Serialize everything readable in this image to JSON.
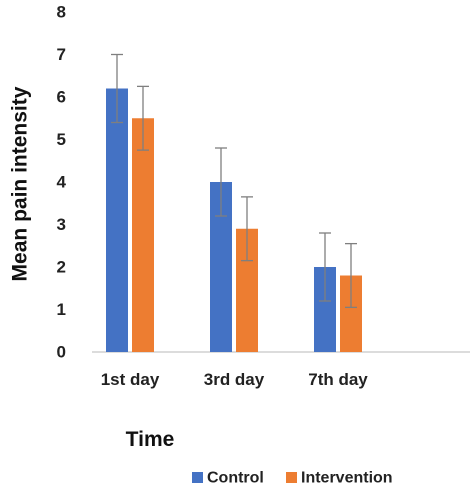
{
  "chart_data": {
    "type": "bar",
    "categories": [
      "1st day",
      "3rd day",
      "7th day"
    ],
    "series": [
      {
        "name": "Control",
        "values": [
          6.2,
          4.0,
          2.0
        ],
        "errors": [
          0.8,
          0.8,
          0.8
        ],
        "color": "#4472C4"
      },
      {
        "name": "Intervention",
        "values": [
          5.5,
          2.9,
          1.8
        ],
        "errors": [
          0.75,
          0.75,
          0.75
        ],
        "color": "#ED7D31"
      }
    ],
    "ylabel": "Mean pain intensity",
    "xlabel": "Time",
    "ylim": [
      0,
      8
    ],
    "yticks": [
      "0",
      "1",
      "2",
      "3",
      "4",
      "5",
      "6",
      "7",
      "8"
    ],
    "grid": false,
    "legend_position": "bottom",
    "error_bars": true,
    "error_bar_color": "#7F7F7F"
  }
}
